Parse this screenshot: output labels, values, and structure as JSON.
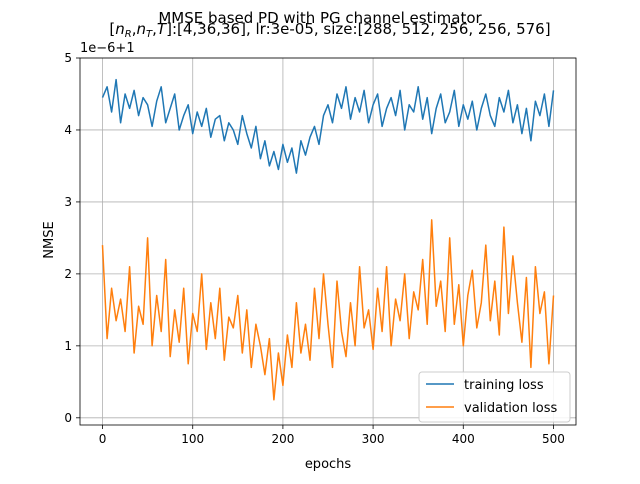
{
  "chart_data": {
    "type": "line",
    "title": "MMSE based PD with PG channel estimator",
    "subtitle": "[n_R, n_T, T]:[4,36,36], lr:3e-05, size:[288, 512, 256, 256, 576]",
    "subtitle_parts": {
      "open": "[",
      "n": "n",
      "r_sub": "R",
      "t_sub": "T",
      "comma": ",",
      "T": "T",
      "close": "]:[4,36,36], lr:3e-05, size:[288, 512, 256, 256, 576]"
    },
    "xlabel": "epochs",
    "ylabel": "NMSE",
    "y_offset_label": "1e−6+1",
    "xlim": [
      -25,
      525
    ],
    "ylim": [
      -0.1,
      5.0
    ],
    "x_ticks": [
      0,
      100,
      200,
      300,
      400,
      500
    ],
    "y_ticks": [
      0,
      1,
      2,
      3,
      4,
      5
    ],
    "grid": true,
    "legend_position": "lower-right",
    "series": [
      {
        "name": "training loss",
        "color": "#1f77b4",
        "x": [
          0,
          5,
          10,
          15,
          20,
          25,
          30,
          35,
          40,
          45,
          50,
          55,
          60,
          65,
          70,
          75,
          80,
          85,
          90,
          95,
          100,
          105,
          110,
          115,
          120,
          125,
          130,
          135,
          140,
          145,
          150,
          155,
          160,
          165,
          170,
          175,
          180,
          185,
          190,
          195,
          200,
          205,
          210,
          215,
          220,
          225,
          230,
          235,
          240,
          245,
          250,
          255,
          260,
          265,
          270,
          275,
          280,
          285,
          290,
          295,
          300,
          305,
          310,
          315,
          320,
          325,
          330,
          335,
          340,
          345,
          350,
          355,
          360,
          365,
          370,
          375,
          380,
          385,
          390,
          395,
          400,
          405,
          410,
          415,
          420,
          425,
          430,
          435,
          440,
          445,
          450,
          455,
          460,
          465,
          470,
          475,
          480,
          485,
          490,
          495,
          500
        ],
        "values": [
          4.45,
          4.6,
          4.25,
          4.7,
          4.1,
          4.5,
          4.3,
          4.55,
          4.2,
          4.45,
          4.35,
          4.05,
          4.4,
          4.6,
          4.1,
          4.3,
          4.5,
          4.0,
          4.2,
          4.35,
          3.95,
          4.25,
          4.05,
          4.3,
          3.9,
          4.15,
          4.2,
          3.85,
          4.1,
          4.0,
          3.8,
          4.2,
          3.95,
          3.75,
          4.05,
          3.6,
          3.85,
          3.5,
          3.7,
          3.45,
          3.8,
          3.55,
          3.75,
          3.4,
          3.85,
          3.65,
          3.9,
          4.05,
          3.8,
          4.2,
          4.35,
          4.1,
          4.5,
          4.3,
          4.6,
          4.15,
          4.45,
          4.25,
          4.55,
          4.1,
          4.35,
          4.5,
          4.05,
          4.3,
          4.45,
          4.2,
          4.55,
          4.0,
          4.35,
          4.25,
          4.6,
          4.15,
          4.45,
          3.95,
          4.3,
          4.5,
          4.1,
          4.25,
          4.55,
          4.05,
          4.35,
          4.15,
          4.4,
          4.0,
          4.3,
          4.5,
          4.2,
          4.05,
          4.45,
          4.25,
          4.55,
          4.1,
          4.35,
          3.95,
          4.3,
          3.85,
          4.4,
          4.2,
          4.5,
          4.05,
          4.55
        ]
      },
      {
        "name": "validation loss",
        "color": "#ff7f0e",
        "x": [
          0,
          5,
          10,
          15,
          20,
          25,
          30,
          35,
          40,
          45,
          50,
          55,
          60,
          65,
          70,
          75,
          80,
          85,
          90,
          95,
          100,
          105,
          110,
          115,
          120,
          125,
          130,
          135,
          140,
          145,
          150,
          155,
          160,
          165,
          170,
          175,
          180,
          185,
          190,
          195,
          200,
          205,
          210,
          215,
          220,
          225,
          230,
          235,
          240,
          245,
          250,
          255,
          260,
          265,
          270,
          275,
          280,
          285,
          290,
          295,
          300,
          305,
          310,
          315,
          320,
          325,
          330,
          335,
          340,
          345,
          350,
          355,
          360,
          365,
          370,
          375,
          380,
          385,
          390,
          395,
          400,
          405,
          410,
          415,
          420,
          425,
          430,
          435,
          440,
          445,
          450,
          455,
          460,
          465,
          470,
          475,
          480,
          485,
          490,
          495,
          500
        ],
        "values": [
          2.4,
          1.1,
          1.8,
          1.35,
          1.65,
          1.2,
          2.1,
          0.9,
          1.55,
          1.3,
          2.5,
          1.0,
          1.7,
          1.2,
          2.2,
          0.85,
          1.5,
          1.05,
          1.8,
          0.75,
          1.45,
          1.2,
          2.0,
          0.95,
          1.6,
          1.1,
          1.8,
          0.8,
          1.4,
          1.25,
          1.7,
          0.9,
          1.5,
          0.7,
          1.3,
          1.0,
          0.6,
          1.1,
          0.25,
          0.9,
          0.45,
          1.15,
          0.7,
          1.6,
          0.9,
          1.3,
          0.8,
          1.8,
          1.1,
          2.0,
          1.3,
          0.7,
          1.9,
          1.2,
          0.85,
          1.6,
          1.0,
          2.1,
          1.25,
          1.5,
          0.95,
          1.8,
          1.2,
          2.1,
          1.0,
          1.65,
          1.35,
          2.0,
          1.1,
          1.75,
          1.5,
          2.2,
          1.3,
          2.75,
          1.55,
          1.9,
          1.2,
          2.5,
          1.3,
          1.85,
          1.0,
          1.7,
          2.05,
          1.25,
          1.6,
          2.4,
          1.35,
          1.9,
          1.15,
          2.65,
          1.45,
          2.25,
          1.6,
          1.05,
          1.95,
          0.7,
          2.1,
          1.45,
          1.75,
          0.75,
          1.7
        ]
      }
    ]
  }
}
